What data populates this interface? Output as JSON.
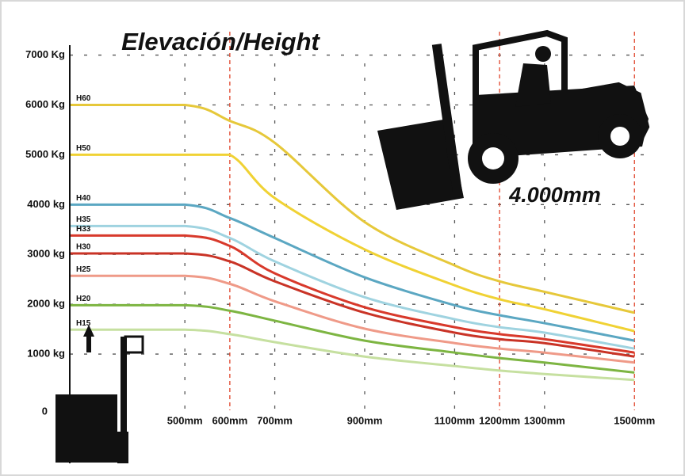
{
  "chart_data": {
    "type": "line",
    "title": "Elevación/Height",
    "annotation": "4.000mm",
    "x": [
      244,
      500,
      600,
      700,
      900,
      1100,
      1200,
      1300,
      1500
    ],
    "xlim": [
      244,
      1526
    ],
    "xticks": [
      {
        "value": 500,
        "label": "500mm"
      },
      {
        "value": 600,
        "label": "600mm"
      },
      {
        "value": 700,
        "label": "700mm"
      },
      {
        "value": 900,
        "label": "900mm"
      },
      {
        "value": 1100,
        "label": "1100mm"
      },
      {
        "value": 1200,
        "label": "1200mm"
      },
      {
        "value": 1300,
        "label": "1300mm"
      },
      {
        "value": 1500,
        "label": "1500mm"
      }
    ],
    "highlight_x": [
      600,
      1200,
      1500
    ],
    "highlight_color": "#e0442a",
    "ylim": [
      0,
      7200
    ],
    "yticks": [
      0,
      {
        "value": 1000,
        "label": "1000 kg"
      },
      {
        "value": 2000,
        "label": "2000 kg"
      },
      {
        "value": 3000,
        "label": "3000 kg"
      },
      {
        "value": 4000,
        "label": "4000 kg"
      },
      {
        "value": 5000,
        "label": "5000 Kg"
      },
      {
        "value": 6000,
        "label": "6000 Kg"
      },
      {
        "value": 7000,
        "label": "7000 Kg"
      }
    ],
    "grid": true,
    "series": [
      {
        "name": "H60",
        "color": "#e6c83a",
        "values": [
          6000,
          6000,
          5680,
          5240,
          3650,
          2780,
          2460,
          2250,
          1830
        ]
      },
      {
        "name": "H50",
        "color": "#f0d234",
        "values": [
          5000,
          5000,
          5000,
          4130,
          3100,
          2380,
          2100,
          1900,
          1460
        ]
      },
      {
        "name": "H40",
        "color": "#5ba7c2",
        "values": [
          4000,
          4000,
          3730,
          3330,
          2540,
          1980,
          1780,
          1620,
          1270
        ]
      },
      {
        "name": "H35",
        "color": "#9fd3e0",
        "values": [
          3570,
          3570,
          3330,
          2860,
          2140,
          1700,
          1540,
          1430,
          1110
        ]
      },
      {
        "name": "H33",
        "color": "#d8392b",
        "values": [
          3380,
          3380,
          3170,
          2620,
          1940,
          1540,
          1400,
          1300,
          1030
        ]
      },
      {
        "name": "H30",
        "color": "#c93326",
        "values": [
          3020,
          3020,
          2860,
          2460,
          1830,
          1430,
          1300,
          1220,
          950
        ]
      },
      {
        "name": "H25",
        "color": "#ef9a88",
        "values": [
          2570,
          2570,
          2410,
          2060,
          1510,
          1220,
          1110,
          1030,
          830
        ]
      },
      {
        "name": "H20",
        "color": "#7db542",
        "values": [
          1980,
          1980,
          1870,
          1670,
          1270,
          1030,
          920,
          830,
          630
        ]
      },
      {
        "name": "H15",
        "color": "#c6e0a0",
        "values": [
          1490,
          1490,
          1400,
          1240,
          950,
          760,
          670,
          600,
          480
        ]
      }
    ]
  }
}
